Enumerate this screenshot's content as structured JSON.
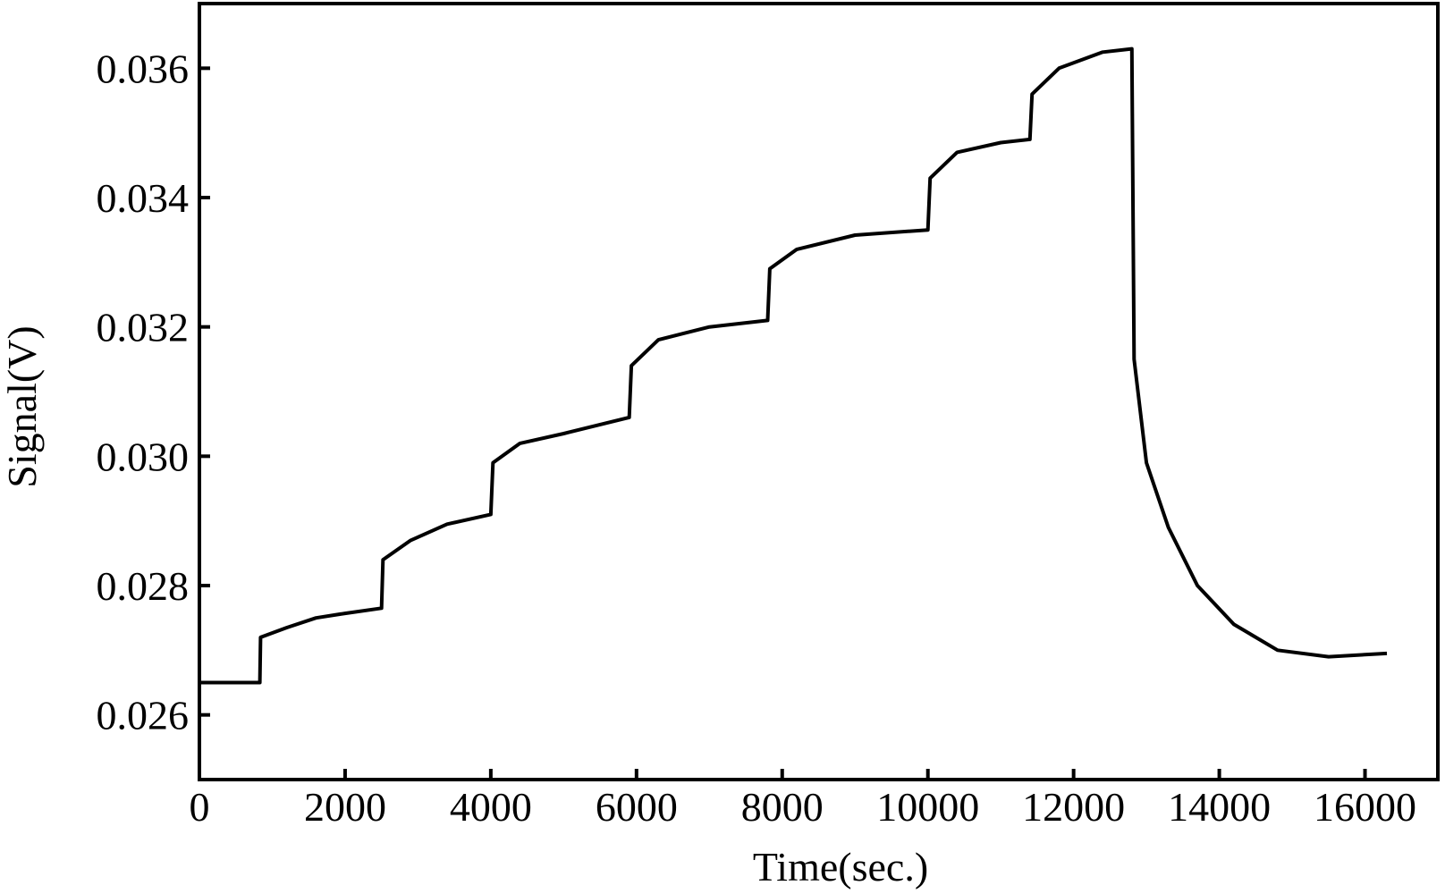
{
  "chart_data": {
    "type": "line",
    "xlabel": "Time(sec.)",
    "ylabel": "Signal(V)",
    "x": [
      0,
      830,
      840,
      1200,
      1600,
      2000,
      2500,
      2520,
      2900,
      3400,
      4000,
      4030,
      4400,
      5000,
      5900,
      5930,
      6300,
      7000,
      7800,
      7830,
      8200,
      9000,
      10000,
      10030,
      10400,
      11000,
      11400,
      11430,
      11800,
      12400,
      12800,
      12830,
      13000,
      13300,
      13700,
      14200,
      14800,
      15500,
      16300
    ],
    "values": [
      0.0265,
      0.0265,
      0.0272,
      0.02735,
      0.0275,
      0.02757,
      0.02765,
      0.0284,
      0.0287,
      0.02895,
      0.0291,
      0.0299,
      0.0302,
      0.03035,
      0.0306,
      0.0314,
      0.0318,
      0.032,
      0.0321,
      0.0329,
      0.0332,
      0.03342,
      0.0335,
      0.0343,
      0.0347,
      0.03485,
      0.0349,
      0.0356,
      0.036,
      0.03625,
      0.0363,
      0.0315,
      0.0299,
      0.0289,
      0.028,
      0.0274,
      0.027,
      0.0269,
      0.02695
    ],
    "color": "#000000",
    "xlim": [
      0,
      17000
    ],
    "xticks": [
      0,
      2000,
      4000,
      6000,
      8000,
      10000,
      12000,
      14000,
      16000
    ],
    "ylim": [
      0.025,
      0.037
    ],
    "yticks": [
      0.026,
      0.028,
      {
        "value": 0.03,
        "label": "0.030"
      },
      0.032,
      0.034,
      0.036
    ]
  }
}
